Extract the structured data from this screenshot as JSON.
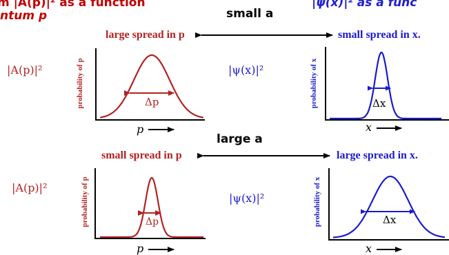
{
  "headers": {
    "left_line1": "m |A(p)|² as a function",
    "left_line2": "ntum p",
    "right_line1": "|ψ(x)|² as a func"
  },
  "rows": {
    "small_a": {
      "label": "small a",
      "left_spread": "large spread in p",
      "right_spread": "small spread in x."
    },
    "large_a": {
      "label": "large a",
      "left_spread": "small spread in p",
      "right_spread": "large spread in x."
    }
  },
  "labels": {
    "A_of_p": "|A(p)|²",
    "psi_of_x": "|ψ(x)|²",
    "prob_p": "probability of p",
    "prob_x": "probability of x",
    "delta_p": "Δp",
    "delta_x": "Δx",
    "axis_p": "p",
    "axis_x": "x"
  },
  "colors": {
    "red": "#b22222",
    "blue": "#1a1acc",
    "header_red": "#c00000",
    "header_blue": "#1f1fd0"
  },
  "curves": {
    "top_left": {
      "shape": "wide",
      "color": "red"
    },
    "top_right": {
      "shape": "narrow",
      "color": "blue"
    },
    "bottom_left": {
      "shape": "narrow",
      "color": "red"
    },
    "bottom_right": {
      "shape": "wide",
      "color": "blue"
    }
  }
}
